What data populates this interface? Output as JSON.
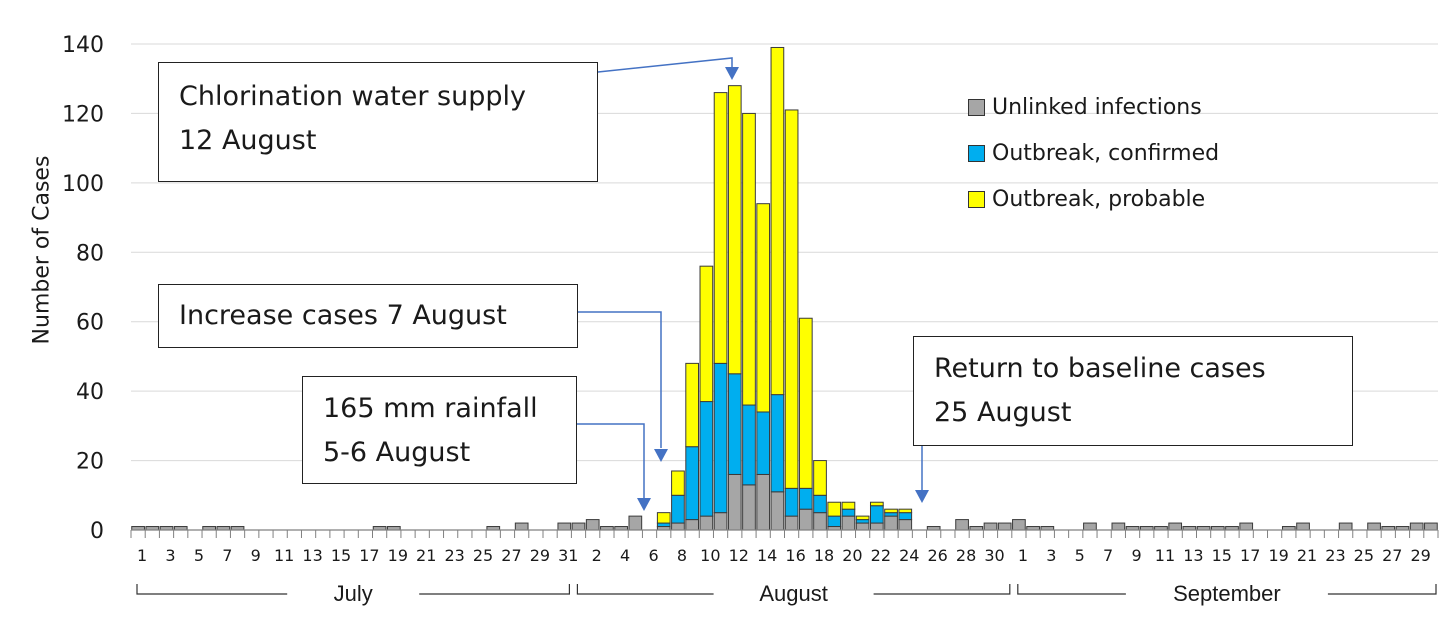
{
  "chart_data": {
    "type": "bar",
    "stacked": true,
    "ylabel": "Number of Cases",
    "ylim": [
      0,
      140
    ],
    "yticks": [
      0,
      20,
      40,
      60,
      80,
      100,
      120,
      140
    ],
    "grid": true,
    "legend_position": "top-right",
    "series": [
      {
        "name": "Unlinked infections",
        "color": "#a6a6a6"
      },
      {
        "name": "Outbreak, confirmed",
        "color": "#00aeef"
      },
      {
        "name": "Outbreak, probable",
        "color": "#ffff00"
      }
    ],
    "days": [
      {
        "label": "1",
        "u": 1
      },
      {
        "label": "2",
        "u": 1
      },
      {
        "label": "3",
        "u": 1
      },
      {
        "label": "4",
        "u": 1
      },
      {
        "label": "5",
        "u": 0
      },
      {
        "label": "6",
        "u": 1
      },
      {
        "label": "7",
        "u": 1
      },
      {
        "label": "8",
        "u": 1
      },
      {
        "label": "9",
        "u": 0
      },
      {
        "label": "10",
        "u": 0
      },
      {
        "label": "11",
        "u": 0
      },
      {
        "label": "12",
        "u": 0
      },
      {
        "label": "13",
        "u": 0
      },
      {
        "label": "14",
        "u": 0
      },
      {
        "label": "15",
        "u": 0
      },
      {
        "label": "16",
        "u": 0
      },
      {
        "label": "17",
        "u": 0
      },
      {
        "label": "18",
        "u": 1
      },
      {
        "label": "19",
        "u": 1
      },
      {
        "label": "20",
        "u": 0
      },
      {
        "label": "21",
        "u": 0
      },
      {
        "label": "22",
        "u": 0
      },
      {
        "label": "23",
        "u": 0
      },
      {
        "label": "24",
        "u": 0
      },
      {
        "label": "25",
        "u": 0
      },
      {
        "label": "26",
        "u": 1
      },
      {
        "label": "27",
        "u": 0
      },
      {
        "label": "28",
        "u": 2
      },
      {
        "label": "29",
        "u": 0
      },
      {
        "label": "30",
        "u": 0
      },
      {
        "label": "31",
        "u": 2
      },
      {
        "label": "1",
        "u": 2
      },
      {
        "label": "2",
        "u": 3
      },
      {
        "label": "3",
        "u": 1
      },
      {
        "label": "4",
        "u": 1
      },
      {
        "label": "5",
        "u": 4
      },
      {
        "label": "6",
        "u": 0
      },
      {
        "label": "7",
        "u": 1,
        "c": 1,
        "p": 3
      },
      {
        "label": "8",
        "u": 2,
        "c": 8,
        "p": 7
      },
      {
        "label": "9",
        "u": 3,
        "c": 21,
        "p": 24
      },
      {
        "label": "10",
        "u": 4,
        "c": 33,
        "p": 39
      },
      {
        "label": "11",
        "u": 5,
        "c": 43,
        "p": 78
      },
      {
        "label": "12",
        "u": 16,
        "c": 29,
        "p": 83
      },
      {
        "label": "13",
        "u": 13,
        "c": 23,
        "p": 84
      },
      {
        "label": "14",
        "u": 16,
        "c": 18,
        "p": 60
      },
      {
        "label": "15",
        "u": 11,
        "c": 28,
        "p": 100
      },
      {
        "label": "16",
        "u": 4,
        "c": 8,
        "p": 109
      },
      {
        "label": "17",
        "u": 6,
        "c": 6,
        "p": 49
      },
      {
        "label": "18",
        "u": 5,
        "c": 5,
        "p": 10
      },
      {
        "label": "19",
        "u": 1,
        "c": 3,
        "p": 4
      },
      {
        "label": "20",
        "u": 4,
        "c": 2,
        "p": 2
      },
      {
        "label": "21",
        "u": 2,
        "c": 1,
        "p": 1
      },
      {
        "label": "22",
        "u": 2,
        "c": 5,
        "p": 1
      },
      {
        "label": "23",
        "u": 4,
        "c": 1,
        "p": 1
      },
      {
        "label": "24",
        "u": 3,
        "c": 2,
        "p": 1
      },
      {
        "label": "25",
        "u": 0
      },
      {
        "label": "26",
        "u": 1
      },
      {
        "label": "27",
        "u": 0
      },
      {
        "label": "28",
        "u": 3
      },
      {
        "label": "29",
        "u": 1
      },
      {
        "label": "30",
        "u": 2
      },
      {
        "label": "31",
        "u": 2
      },
      {
        "label": "1",
        "u": 3
      },
      {
        "label": "2",
        "u": 1
      },
      {
        "label": "3",
        "u": 1
      },
      {
        "label": "4",
        "u": 0
      },
      {
        "label": "5",
        "u": 0
      },
      {
        "label": "6",
        "u": 2
      },
      {
        "label": "7",
        "u": 0
      },
      {
        "label": "8",
        "u": 2
      },
      {
        "label": "9",
        "u": 1
      },
      {
        "label": "10",
        "u": 1
      },
      {
        "label": "11",
        "u": 1
      },
      {
        "label": "12",
        "u": 2
      },
      {
        "label": "13",
        "u": 1
      },
      {
        "label": "14",
        "u": 1
      },
      {
        "label": "15",
        "u": 1
      },
      {
        "label": "16",
        "u": 1
      },
      {
        "label": "17",
        "u": 2
      },
      {
        "label": "18",
        "u": 0
      },
      {
        "label": "19",
        "u": 0
      },
      {
        "label": "20",
        "u": 1
      },
      {
        "label": "21",
        "u": 2
      },
      {
        "label": "22",
        "u": 0
      },
      {
        "label": "23",
        "u": 0
      },
      {
        "label": "24",
        "u": 2
      },
      {
        "label": "25",
        "u": 0
      },
      {
        "label": "26",
        "u": 2
      },
      {
        "label": "27",
        "u": 1
      },
      {
        "label": "28",
        "u": 1
      },
      {
        "label": "29",
        "u": 2
      },
      {
        "label": "30",
        "u": 2
      }
    ],
    "tick_labels": [
      "1",
      "3",
      "5",
      "7",
      "9",
      "11",
      "13",
      "15",
      "17",
      "19",
      "21",
      "23",
      "25",
      "27",
      "29",
      "31",
      "2",
      "4",
      "6",
      "8",
      "10",
      "12",
      "14",
      "16",
      "18",
      "20",
      "22",
      "24",
      "26",
      "28",
      "30",
      "1",
      "3",
      "5",
      "7",
      "9",
      "11",
      "13",
      "15",
      "17",
      "19",
      "21",
      "23",
      "25",
      "27",
      "29"
    ],
    "months": [
      {
        "label": "July",
        "start": 0,
        "end": 31
      },
      {
        "label": "August",
        "start": 31,
        "end": 62
      },
      {
        "label": "September",
        "start": 62,
        "end": 92
      }
    ],
    "annotations": [
      {
        "lines": [
          "Chlorination water supply",
          "12 August"
        ]
      },
      {
        "lines": [
          "Increase cases 7 August"
        ]
      },
      {
        "lines": [
          "165 mm rainfall",
          "5-6 August"
        ]
      },
      {
        "lines": [
          "Return to baseline cases",
          "25 August"
        ]
      }
    ]
  }
}
